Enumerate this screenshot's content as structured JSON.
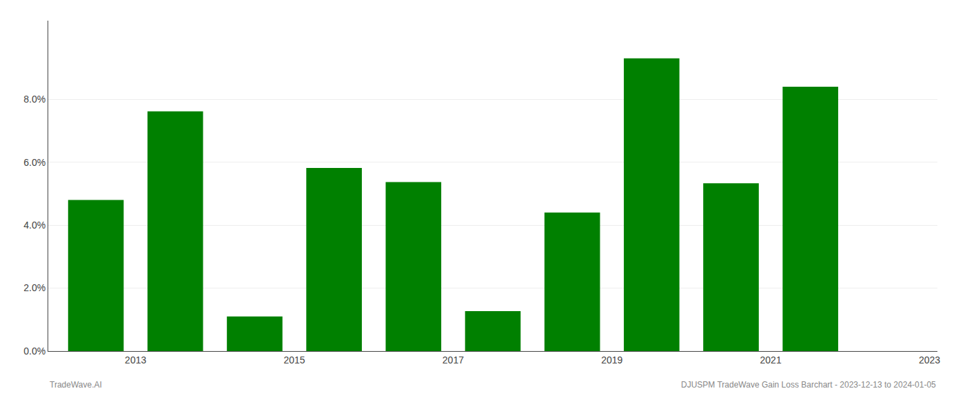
{
  "chart_data": {
    "type": "bar",
    "x": [
      2013,
      2014,
      2015,
      2016,
      2017,
      2018,
      2019,
      2020,
      2021,
      2022
    ],
    "values": [
      0.048,
      0.0762,
      0.011,
      0.0582,
      0.0537,
      0.0127,
      0.044,
      0.093,
      0.0533,
      0.084
    ],
    "color": "#008000",
    "xlim": [
      2012.4,
      2023.6
    ],
    "xticks": [
      {
        "value": 2013.5,
        "label": "2013"
      },
      {
        "value": 2015.5,
        "label": "2015"
      },
      {
        "value": 2017.5,
        "label": "2017"
      },
      {
        "value": 2019.5,
        "label": "2019"
      },
      {
        "value": 2021.5,
        "label": "2021"
      },
      {
        "value": 2023.5,
        "label": "2023"
      }
    ],
    "ylim": [
      0,
      0.105
    ],
    "yticks": [
      {
        "value": 0.0,
        "label": "0.0%"
      },
      {
        "value": 0.02,
        "label": "2.0%"
      },
      {
        "value": 0.04,
        "label": "4.0%"
      },
      {
        "value": 0.06,
        "label": "6.0%"
      },
      {
        "value": 0.08,
        "label": "8.0%"
      }
    ],
    "grid": true,
    "annotations": [
      "TradeWave.AI",
      "DJUSPM TradeWave Gain Loss Barchart - 2023-12-13 to 2024-01-05"
    ]
  }
}
